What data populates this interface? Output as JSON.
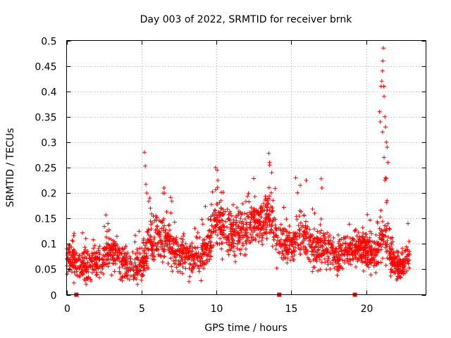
{
  "chart_data": {
    "type": "scatter",
    "title": "Day 003 of 2022, SRMTID for receiver brnk",
    "xlabel": "GPS time / hours",
    "ylabel": "SRMTID / TECUs",
    "xlim": [
      0,
      24
    ],
    "ylim": [
      0,
      0.5
    ],
    "xticks": [
      "0",
      "5",
      "10",
      "15",
      "20"
    ],
    "yticks": [
      "0",
      "0.05",
      "0.1",
      "0.15",
      "0.2",
      "0.25",
      "0.3",
      "0.35",
      "0.4",
      "0.45",
      "0.5"
    ],
    "grid": true,
    "marker": "+",
    "series": [
      {
        "name": "SRMTID",
        "color": "#ff0000",
        "profile": [
          [
            0.0,
            0.075,
            0.03
          ],
          [
            0.5,
            0.07,
            0.035
          ],
          [
            1.0,
            0.055,
            0.03
          ],
          [
            1.5,
            0.06,
            0.03
          ],
          [
            2.0,
            0.06,
            0.025
          ],
          [
            2.5,
            0.07,
            0.03
          ],
          [
            3.0,
            0.085,
            0.035
          ],
          [
            3.5,
            0.075,
            0.035
          ],
          [
            4.0,
            0.06,
            0.03
          ],
          [
            4.5,
            0.055,
            0.025
          ],
          [
            5.0,
            0.06,
            0.03
          ],
          [
            5.5,
            0.1,
            0.04
          ],
          [
            6.0,
            0.115,
            0.04
          ],
          [
            6.5,
            0.11,
            0.04
          ],
          [
            7.0,
            0.095,
            0.035
          ],
          [
            7.5,
            0.08,
            0.035
          ],
          [
            8.0,
            0.075,
            0.03
          ],
          [
            8.5,
            0.07,
            0.03
          ],
          [
            9.0,
            0.075,
            0.035
          ],
          [
            9.5,
            0.1,
            0.04
          ],
          [
            10.0,
            0.15,
            0.05
          ],
          [
            10.5,
            0.13,
            0.045
          ],
          [
            11.0,
            0.12,
            0.045
          ],
          [
            11.5,
            0.12,
            0.04
          ],
          [
            12.0,
            0.13,
            0.04
          ],
          [
            12.5,
            0.14,
            0.04
          ],
          [
            13.0,
            0.145,
            0.035
          ],
          [
            13.5,
            0.16,
            0.045
          ],
          [
            14.0,
            0.12,
            0.04
          ],
          [
            14.5,
            0.1,
            0.035
          ],
          [
            15.0,
            0.095,
            0.03
          ],
          [
            15.5,
            0.12,
            0.04
          ],
          [
            16.0,
            0.11,
            0.04
          ],
          [
            16.5,
            0.095,
            0.035
          ],
          [
            17.0,
            0.09,
            0.035
          ],
          [
            17.5,
            0.09,
            0.035
          ],
          [
            18.0,
            0.08,
            0.03
          ],
          [
            18.5,
            0.085,
            0.03
          ],
          [
            19.0,
            0.085,
            0.03
          ],
          [
            19.5,
            0.09,
            0.03
          ],
          [
            20.0,
            0.09,
            0.03
          ],
          [
            20.5,
            0.075,
            0.03
          ],
          [
            21.0,
            0.12,
            0.05
          ],
          [
            21.5,
            0.09,
            0.04
          ],
          [
            22.0,
            0.055,
            0.025
          ],
          [
            22.5,
            0.06,
            0.025
          ],
          [
            22.8,
            0.07,
            0.03
          ]
        ],
        "outliers": [
          [
            5.2,
            0.28
          ],
          [
            5.25,
            0.253
          ],
          [
            5.3,
            0.217
          ],
          [
            5.35,
            0.2
          ],
          [
            5.55,
            0.19
          ],
          [
            5.6,
            0.17
          ],
          [
            6.5,
            0.21
          ],
          [
            6.55,
            0.2
          ],
          [
            9.95,
            0.25
          ],
          [
            10.05,
            0.245
          ],
          [
            10.1,
            0.225
          ],
          [
            13.5,
            0.278
          ],
          [
            13.55,
            0.26
          ],
          [
            13.7,
            0.24
          ],
          [
            15.3,
            0.23
          ],
          [
            15.6,
            0.215
          ],
          [
            16.0,
            0.225
          ],
          [
            17.0,
            0.228
          ],
          [
            17.05,
            0.21
          ],
          [
            20.9,
            0.36
          ],
          [
            21.0,
            0.41
          ],
          [
            21.05,
            0.42
          ],
          [
            21.1,
            0.44
          ],
          [
            21.12,
            0.46
          ],
          [
            21.15,
            0.485
          ],
          [
            21.18,
            0.41
          ],
          [
            21.2,
            0.39
          ],
          [
            21.25,
            0.35
          ],
          [
            21.3,
            0.33
          ],
          [
            21.35,
            0.3
          ],
          [
            21.4,
            0.29
          ],
          [
            21.45,
            0.26
          ],
          [
            21.3,
            0.23
          ],
          [
            21.25,
            0.225
          ],
          [
            21.2,
            0.27
          ],
          [
            20.95,
            0.34
          ],
          [
            21.1,
            0.32
          ],
          [
            21.4,
            0.185
          ],
          [
            21.45,
            0.14
          ],
          [
            21.55,
            0.13
          ],
          [
            22.8,
            0.14
          ]
        ],
        "count": 2200,
        "xrange": [
          0,
          22.9
        ]
      }
    ],
    "gaps": [
      0.65,
      14.2,
      19.25
    ]
  }
}
